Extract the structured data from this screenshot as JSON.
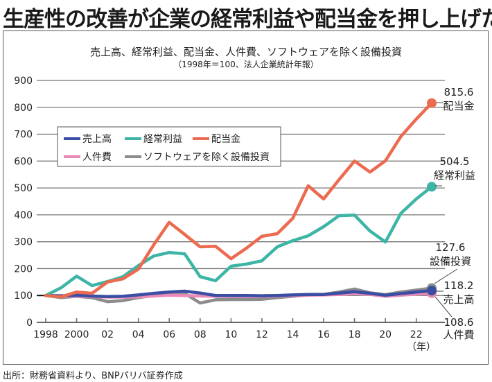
{
  "headline": "生産性の改善が企業の経常利益や配当金を押し上げた",
  "source": "出所：財務省資料より、BNPパリバ証券作成",
  "chart_data": {
    "type": "line",
    "title": "売上高、経常利益、配当金、人件費、ソフトウェアを除く設備投資",
    "subtitle": "（1998年＝100、法人企業統計年報）",
    "xlabel": "（年）",
    "ylabel": "",
    "ylim": [
      0,
      900
    ],
    "yticks": [
      0,
      100,
      200,
      300,
      400,
      500,
      600,
      700,
      800,
      900
    ],
    "xticks": [
      1998,
      2000,
      2002,
      2004,
      2006,
      2008,
      2010,
      2012,
      2014,
      2016,
      2018,
      2020,
      2022
    ],
    "xtick_labels": [
      "1998",
      "2000",
      "02",
      "04",
      "06",
      "08",
      "10",
      "12",
      "14",
      "16",
      "18",
      "20",
      "22"
    ],
    "xlim": [
      1998,
      2023
    ],
    "grid": true,
    "legend_position": "upper-left",
    "x": [
      1998,
      1999,
      2000,
      2001,
      2002,
      2003,
      2004,
      2005,
      2006,
      2007,
      2008,
      2009,
      2010,
      2011,
      2012,
      2013,
      2014,
      2015,
      2016,
      2017,
      2018,
      2019,
      2020,
      2021,
      2022,
      2023
    ],
    "series": [
      {
        "name": "ソフトウェアを除く設備投資",
        "key": "capex",
        "color": "#8c8c8c",
        "values": [
          100,
          92,
          97,
          92,
          77,
          81,
          92,
          100,
          106,
          108,
          72,
          84,
          85,
          85,
          86,
          92,
          97,
          103,
          104,
          113,
          124,
          110,
          103,
          113,
          120,
          127.6
        ],
        "end_label": "127.6",
        "end_name": "設備投資"
      },
      {
        "name": "人件費",
        "key": "labor",
        "color": "#e98ab8",
        "values": [
          100,
          97,
          98,
          96,
          94,
          94,
          95,
          98,
          101,
          100,
          98,
          97,
          97,
          97,
          97,
          98,
          99,
          101,
          102,
          104,
          107,
          104,
          97,
          101,
          105,
          108.6
        ],
        "end_label": "108.6",
        "end_name": "人件費"
      },
      {
        "name": "売上高",
        "key": "sales",
        "color": "#3a4fa3",
        "values": [
          100,
          99,
          101,
          98,
          96,
          97,
          102,
          108,
          113,
          116,
          109,
          100,
          100,
          100,
          99,
          100,
          102,
          104,
          104,
          109,
          114,
          108,
          101,
          107,
          113,
          118.2
        ],
        "end_label": "118.2",
        "end_name": "売上高"
      },
      {
        "name": "経常利益",
        "key": "profit",
        "color": "#3db5a6",
        "values": [
          100,
          129,
          172,
          137,
          152,
          170,
          211,
          247,
          260,
          255,
          170,
          155,
          209,
          217,
          229,
          281,
          304,
          322,
          356,
          397,
          399,
          340,
          299,
          405,
          459,
          504.5
        ],
        "end_label": "504.5",
        "end_name": "経常利益"
      },
      {
        "name": "配当金",
        "key": "dividend",
        "color": "#ec6a4f",
        "values": [
          100,
          95,
          113,
          108,
          150,
          162,
          198,
          289,
          372,
          327,
          281,
          283,
          237,
          276,
          320,
          330,
          387,
          508,
          459,
          531,
          600,
          559,
          601,
          691,
          756,
          815.6
        ],
        "end_label": "815.6",
        "end_name": "配当金"
      }
    ],
    "legend": [
      {
        "name": "売上高",
        "color": "#3a4fa3"
      },
      {
        "name": "経常利益",
        "color": "#3db5a6"
      },
      {
        "name": "配当金",
        "color": "#ec6a4f"
      },
      {
        "name": "人件費",
        "color": "#e98ab8"
      },
      {
        "name": "ソフトウェアを除く設備投資",
        "color": "#8c8c8c"
      }
    ]
  }
}
